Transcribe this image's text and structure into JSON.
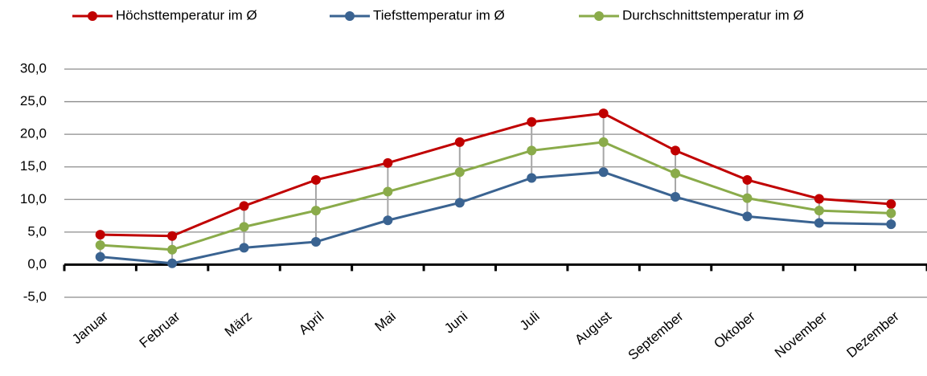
{
  "chart_data": {
    "type": "line",
    "categories": [
      "Januar",
      "Februar",
      "März",
      "April",
      "Mai",
      "Juni",
      "Juli",
      "August",
      "September",
      "Oktober",
      "November",
      "Dezember"
    ],
    "series": [
      {
        "name": "Höchsttemperatur im Ø",
        "color": "#c00000",
        "values": [
          4.6,
          4.4,
          9.0,
          13.0,
          15.6,
          18.8,
          21.9,
          23.2,
          17.5,
          13.0,
          10.1,
          9.3
        ]
      },
      {
        "name": "Tiefsttemperatur im Ø",
        "color": "#3a6391",
        "values": [
          1.2,
          0.2,
          2.6,
          3.5,
          6.8,
          9.5,
          13.3,
          14.2,
          10.4,
          7.4,
          6.4,
          6.2
        ]
      },
      {
        "name": "Durchschnittstemperatur im Ø",
        "color": "#8aab4a",
        "values": [
          3.0,
          2.3,
          5.8,
          8.3,
          11.2,
          14.2,
          17.5,
          18.8,
          14.0,
          10.2,
          8.3,
          7.9
        ]
      }
    ],
    "ylim": [
      -5,
      30
    ],
    "yticks": [
      {
        "value": -5,
        "label": "-5,0"
      },
      {
        "value": 0,
        "label": "0,0"
      },
      {
        "value": 5,
        "label": "5,0"
      },
      {
        "value": 10,
        "label": "10,0"
      },
      {
        "value": 15,
        "label": "15,0"
      },
      {
        "value": 20,
        "label": "20,0"
      },
      {
        "value": 25,
        "label": "25,0"
      },
      {
        "value": 30,
        "label": "30,0"
      }
    ],
    "grid": true,
    "legend": "top"
  }
}
